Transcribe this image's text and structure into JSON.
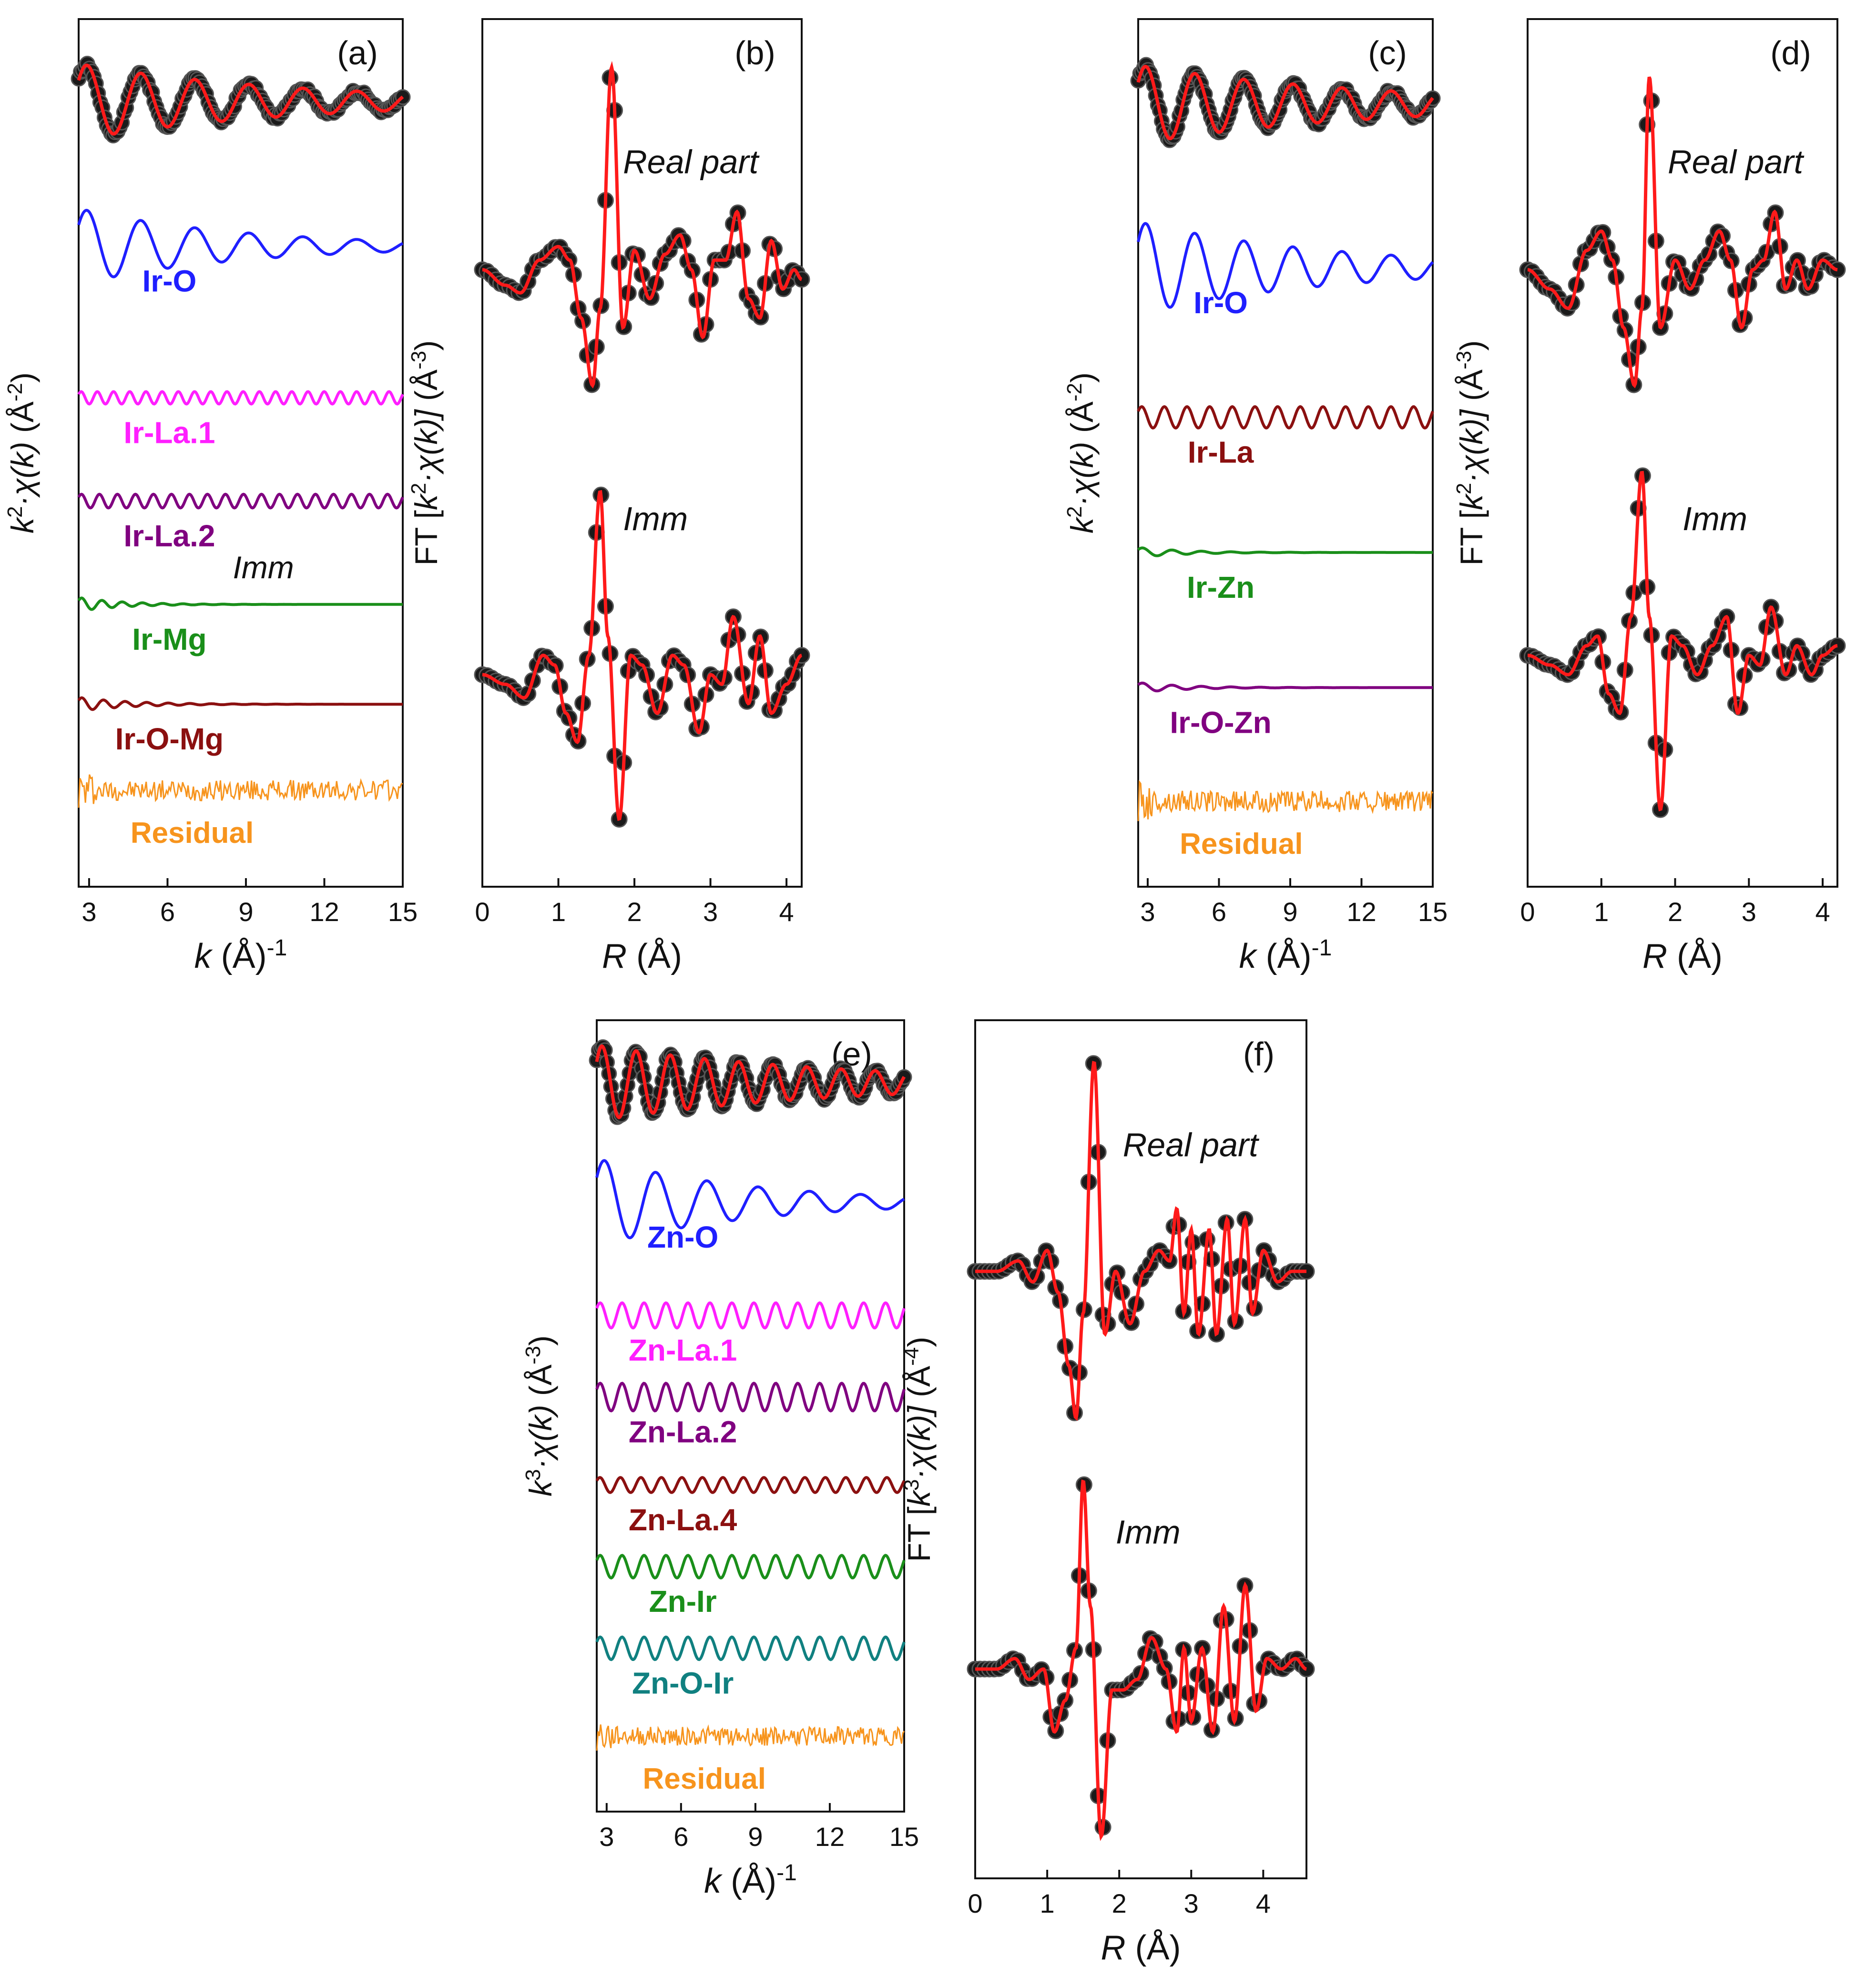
{
  "figure": {
    "caption_marks": [
      "(a)",
      "(b)",
      "(c)",
      "(d)",
      "(e)",
      "(f)"
    ]
  },
  "chart_data": [
    {
      "id": "a",
      "type": "line",
      "panel_label": "(a)",
      "kind": "k",
      "note": "Imm",
      "xlabel": {
        "var": "k",
        "unit": "(Å)",
        "exp": "-1"
      },
      "ylabel": {
        "pre": "k",
        "pre_exp": "2",
        "func": "·χ(k)",
        "unit": "(Å",
        "unit_exp": "-2",
        "close": ")"
      },
      "xlim": [
        2.6,
        15
      ],
      "xticks": [
        3,
        6,
        9,
        12,
        15
      ],
      "series": [
        {
          "name": "Data",
          "role": "data",
          "offset": 0.0,
          "amp": 0.55,
          "cycles": 6.0,
          "decay": 0.12
        },
        {
          "name": "Ir-O",
          "role": "path",
          "color": "#1f1fff",
          "offset": -2.1,
          "amp": 0.55,
          "cycles": 6.0,
          "decay": 0.16
        },
        {
          "name": "Ir-La.1",
          "role": "path",
          "color": "#ff1fff",
          "offset": -4.3,
          "amp": 0.09,
          "cycles": 20.0,
          "decay": 0.0
        },
        {
          "name": "Ir-La.2",
          "role": "path",
          "color": "#800080",
          "offset": -5.8,
          "amp": 0.1,
          "cycles": 18.0,
          "decay": 0.0
        },
        {
          "name": "Ir-Mg",
          "role": "path",
          "color": "#1a8f1a",
          "offset": -7.3,
          "amp": 0.1,
          "cycles": 16.0,
          "decay": 0.6
        },
        {
          "name": "Ir-O-Mg",
          "role": "path",
          "color": "#8b1010",
          "offset": -8.75,
          "amp": 0.1,
          "cycles": 15.0,
          "decay": 0.5
        },
        {
          "name": "Residual",
          "role": "residual",
          "color": "#f7941d",
          "offset": -10.0,
          "amp": 0.15
        }
      ],
      "ylim": [
        -11.4,
        1.2
      ]
    },
    {
      "id": "b",
      "type": "line",
      "panel_label": "(b)",
      "kind": "r",
      "xlabel": {
        "var": "R",
        "unit": "(Å)",
        "exp": ""
      },
      "ylabel": {
        "pre": "FT [k",
        "pre_exp": "2",
        "func": "·χ(k)]",
        "unit": "(Å",
        "unit_exp": "-3",
        "close": ")"
      },
      "xlim": [
        0,
        4.2
      ],
      "xticks": [
        0,
        1,
        2,
        3,
        4
      ],
      "series": [
        {
          "name": "Real part",
          "offset": 0.0,
          "flip": 1,
          "center": 1.6,
          "main_amp": 0.6,
          "points": [
            [
              0,
              0.0
            ],
            [
              0.3,
              -0.08
            ],
            [
              0.5,
              -0.12
            ],
            [
              0.75,
              0.05
            ],
            [
              1.0,
              0.12
            ],
            [
              1.15,
              0.05
            ],
            [
              1.3,
              -0.25
            ],
            [
              1.45,
              -0.6
            ],
            [
              1.55,
              -0.2
            ],
            [
              1.7,
              1.05
            ],
            [
              1.85,
              -0.3
            ],
            [
              2.0,
              0.1
            ],
            [
              2.2,
              -0.15
            ],
            [
              2.4,
              0.08
            ],
            [
              2.6,
              0.18
            ],
            [
              2.75,
              0.0
            ],
            [
              2.9,
              -0.35
            ],
            [
              3.05,
              0.05
            ],
            [
              3.2,
              0.05
            ],
            [
              3.35,
              0.3
            ],
            [
              3.5,
              -0.15
            ],
            [
              3.65,
              -0.25
            ],
            [
              3.8,
              0.15
            ],
            [
              3.95,
              -0.1
            ],
            [
              4.1,
              0.0
            ],
            [
              4.2,
              -0.05
            ]
          ]
        },
        {
          "name": "Imm",
          "offset": -2.1,
          "flip": 1,
          "points": [
            [
              0,
              0.0
            ],
            [
              0.3,
              -0.05
            ],
            [
              0.55,
              -0.12
            ],
            [
              0.8,
              0.1
            ],
            [
              0.95,
              0.05
            ],
            [
              1.1,
              -0.2
            ],
            [
              1.25,
              -0.35
            ],
            [
              1.4,
              0.1
            ],
            [
              1.55,
              0.95
            ],
            [
              1.65,
              0.2
            ],
            [
              1.8,
              -0.75
            ],
            [
              1.95,
              0.1
            ],
            [
              2.1,
              0.05
            ],
            [
              2.3,
              -0.2
            ],
            [
              2.5,
              0.1
            ],
            [
              2.65,
              0.05
            ],
            [
              2.85,
              -0.3
            ],
            [
              3.0,
              0.0
            ],
            [
              3.15,
              -0.05
            ],
            [
              3.3,
              0.3
            ],
            [
              3.5,
              -0.15
            ],
            [
              3.65,
              0.2
            ],
            [
              3.8,
              -0.2
            ],
            [
              4.0,
              -0.05
            ],
            [
              4.2,
              0.1
            ]
          ]
        }
      ],
      "annotations": [
        {
          "text": "Real part",
          "x": 1.85,
          "y": 0.5
        },
        {
          "text": "Imm",
          "x": 1.85,
          "y": -1.35
        }
      ],
      "ylim": [
        -3.2,
        1.3
      ]
    },
    {
      "id": "c",
      "type": "line",
      "panel_label": "(c)",
      "kind": "k",
      "xlabel": {
        "var": "k",
        "unit": "(Å)",
        "exp": "-1"
      },
      "ylabel": {
        "pre": "k",
        "pre_exp": "2",
        "func": "·χ(k)",
        "unit": "(Å",
        "unit_exp": "-2",
        "close": ")"
      },
      "xlim": [
        2.6,
        15
      ],
      "xticks": [
        3,
        6,
        9,
        12,
        15
      ],
      "series": [
        {
          "name": "Data",
          "role": "data",
          "offset": 0.0,
          "amp": 0.55,
          "cycles": 6.0,
          "decay": 0.1
        },
        {
          "name": "Ir-O",
          "role": "path",
          "color": "#1f1fff",
          "offset": -2.3,
          "amp": 0.65,
          "cycles": 6.0,
          "decay": 0.12
        },
        {
          "name": "Ir-La",
          "role": "path",
          "color": "#8b1010",
          "offset": -4.4,
          "amp": 0.15,
          "cycles": 13.0,
          "decay": 0.0
        },
        {
          "name": "Ir-Zn",
          "role": "path",
          "color": "#1a8f1a",
          "offset": -6.3,
          "amp": 0.07,
          "cycles": 10.0,
          "decay": 0.5
        },
        {
          "name": "Ir-O-Zn",
          "role": "path",
          "color": "#800080",
          "offset": -8.2,
          "amp": 0.07,
          "cycles": 10.0,
          "decay": 0.5
        },
        {
          "name": "Residual",
          "role": "residual",
          "color": "#f7941d",
          "offset": -9.8,
          "amp": 0.15
        }
      ],
      "ylim": [
        -11.0,
        1.2
      ]
    },
    {
      "id": "d",
      "type": "line",
      "panel_label": "(d)",
      "kind": "r",
      "xlabel": {
        "var": "R",
        "unit": "(Å)",
        "exp": ""
      },
      "ylabel": {
        "pre": "FT [k",
        "pre_exp": "2",
        "func": "·χ(k)]",
        "unit": "(Å",
        "unit_exp": "-3",
        "close": ")"
      },
      "xlim": [
        0,
        4.2
      ],
      "xticks": [
        0,
        1,
        2,
        3,
        4
      ],
      "series": [
        {
          "name": "Real part",
          "offset": 0.0,
          "points": [
            [
              0,
              0.0
            ],
            [
              0.3,
              -0.1
            ],
            [
              0.55,
              -0.2
            ],
            [
              0.8,
              0.1
            ],
            [
              1.0,
              0.2
            ],
            [
              1.15,
              0.05
            ],
            [
              1.3,
              -0.3
            ],
            [
              1.45,
              -0.6
            ],
            [
              1.55,
              -0.2
            ],
            [
              1.65,
              1.0
            ],
            [
              1.8,
              -0.3
            ],
            [
              2.0,
              0.05
            ],
            [
              2.2,
              -0.1
            ],
            [
              2.4,
              0.05
            ],
            [
              2.6,
              0.2
            ],
            [
              2.75,
              0.05
            ],
            [
              2.9,
              -0.3
            ],
            [
              3.05,
              0.0
            ],
            [
              3.2,
              0.05
            ],
            [
              3.35,
              0.3
            ],
            [
              3.5,
              -0.1
            ],
            [
              3.65,
              0.05
            ],
            [
              3.8,
              -0.1
            ],
            [
              4.0,
              0.05
            ],
            [
              4.2,
              0.0
            ]
          ]
        },
        {
          "name": "Imm",
          "offset": -2.0,
          "points": [
            [
              0,
              0.0
            ],
            [
              0.3,
              -0.05
            ],
            [
              0.55,
              -0.1
            ],
            [
              0.8,
              0.05
            ],
            [
              0.95,
              0.1
            ],
            [
              1.1,
              -0.2
            ],
            [
              1.25,
              -0.3
            ],
            [
              1.4,
              0.2
            ],
            [
              1.55,
              0.95
            ],
            [
              1.65,
              0.2
            ],
            [
              1.8,
              -0.8
            ],
            [
              1.95,
              0.1
            ],
            [
              2.1,
              0.05
            ],
            [
              2.3,
              -0.1
            ],
            [
              2.5,
              0.05
            ],
            [
              2.7,
              0.2
            ],
            [
              2.85,
              -0.3
            ],
            [
              3.0,
              0.0
            ],
            [
              3.15,
              -0.05
            ],
            [
              3.3,
              0.25
            ],
            [
              3.5,
              -0.1
            ],
            [
              3.65,
              0.05
            ],
            [
              3.85,
              -0.1
            ],
            [
              4.0,
              0.0
            ],
            [
              4.2,
              0.05
            ]
          ]
        }
      ],
      "annotations": [
        {
          "text": "Real part",
          "x": 1.9,
          "y": 0.5
        },
        {
          "text": "Imm",
          "x": 2.1,
          "y": -1.35
        }
      ],
      "ylim": [
        -3.2,
        1.3
      ]
    },
    {
      "id": "e",
      "type": "line",
      "panel_label": "(e)",
      "kind": "k",
      "xlabel": {
        "var": "k",
        "unit": "(Å)",
        "exp": "-1"
      },
      "ylabel": {
        "pre": "k",
        "pre_exp": "3",
        "func": "·χ(k)",
        "unit": "(Å",
        "unit_exp": "-3",
        "close": ")"
      },
      "xlim": [
        2.6,
        15
      ],
      "xticks": [
        3,
        6,
        9,
        12,
        15
      ],
      "series": [
        {
          "name": "Data",
          "role": "data",
          "offset": 0.0,
          "amp": 0.6,
          "cycles": 9.0,
          "decay": 0.1
        },
        {
          "name": "Zn-O",
          "role": "path",
          "color": "#1f1fff",
          "offset": -1.9,
          "amp": 0.7,
          "cycles": 6.0,
          "decay": 0.16
        },
        {
          "name": "Zn-La.1",
          "role": "path",
          "color": "#ff1fff",
          "offset": -3.7,
          "amp": 0.2,
          "cycles": 14.0,
          "decay": 0.0
        },
        {
          "name": "Zn-La.2",
          "role": "path",
          "color": "#800080",
          "offset": -5.0,
          "amp": 0.22,
          "cycles": 14.0,
          "decay": 0.0
        },
        {
          "name": "Zn-La.4",
          "role": "path",
          "color": "#8b1010",
          "offset": -6.4,
          "amp": 0.12,
          "cycles": 15.0,
          "decay": 0.0
        },
        {
          "name": "Zn-Ir",
          "role": "path",
          "color": "#1a8f1a",
          "offset": -7.7,
          "amp": 0.18,
          "cycles": 14.0,
          "decay": 0.0
        },
        {
          "name": "Zn-O-Ir",
          "role": "path",
          "color": "#108080",
          "offset": -9.0,
          "amp": 0.18,
          "cycles": 14.0,
          "decay": 0.0
        },
        {
          "name": "Residual",
          "role": "residual",
          "color": "#f7941d",
          "offset": -10.4,
          "amp": 0.15
        }
      ],
      "ylim": [
        -11.6,
        1.0
      ]
    },
    {
      "id": "f",
      "type": "line",
      "panel_label": "(f)",
      "kind": "r",
      "xlabel": {
        "var": "R",
        "unit": "(Å)",
        "exp": ""
      },
      "ylabel": {
        "pre": "FT [k",
        "pre_exp": "3",
        "func": "·χ(k)]",
        "unit": "(Å",
        "unit_exp": "-4",
        "close": ")"
      },
      "xlim": [
        0,
        4.6
      ],
      "xticks": [
        0,
        1,
        2,
        3,
        4
      ],
      "series": [
        {
          "name": "Real part",
          "offset": 0.0,
          "points": [
            [
              0,
              0.0
            ],
            [
              0.3,
              0.0
            ],
            [
              0.6,
              0.05
            ],
            [
              0.8,
              -0.05
            ],
            [
              1.0,
              0.1
            ],
            [
              1.15,
              -0.1
            ],
            [
              1.3,
              -0.45
            ],
            [
              1.4,
              -0.7
            ],
            [
              1.5,
              -0.2
            ],
            [
              1.65,
              1.0
            ],
            [
              1.8,
              -0.3
            ],
            [
              1.95,
              0.0
            ],
            [
              2.15,
              -0.25
            ],
            [
              2.35,
              0.0
            ],
            [
              2.55,
              0.1
            ],
            [
              2.7,
              0.05
            ],
            [
              2.8,
              0.3
            ],
            [
              2.9,
              -0.2
            ],
            [
              3.0,
              0.2
            ],
            [
              3.1,
              -0.3
            ],
            [
              3.25,
              0.2
            ],
            [
              3.35,
              -0.3
            ],
            [
              3.5,
              0.25
            ],
            [
              3.6,
              -0.25
            ],
            [
              3.75,
              0.25
            ],
            [
              3.85,
              -0.2
            ],
            [
              4.0,
              0.1
            ],
            [
              4.2,
              -0.05
            ],
            [
              4.4,
              0.0
            ],
            [
              4.6,
              0.0
            ]
          ]
        },
        {
          "name": "Imm",
          "offset": -1.9,
          "points": [
            [
              0,
              0.0
            ],
            [
              0.3,
              0.0
            ],
            [
              0.55,
              0.05
            ],
            [
              0.75,
              -0.05
            ],
            [
              0.95,
              0.0
            ],
            [
              1.1,
              -0.3
            ],
            [
              1.25,
              -0.15
            ],
            [
              1.4,
              0.1
            ],
            [
              1.5,
              0.9
            ],
            [
              1.6,
              0.3
            ],
            [
              1.75,
              -0.8
            ],
            [
              1.9,
              -0.1
            ],
            [
              2.05,
              -0.1
            ],
            [
              2.25,
              -0.05
            ],
            [
              2.45,
              0.15
            ],
            [
              2.65,
              0.0
            ],
            [
              2.8,
              -0.3
            ],
            [
              2.9,
              0.1
            ],
            [
              3.0,
              -0.25
            ],
            [
              3.15,
              0.1
            ],
            [
              3.3,
              -0.3
            ],
            [
              3.45,
              0.3
            ],
            [
              3.6,
              -0.25
            ],
            [
              3.75,
              0.4
            ],
            [
              3.9,
              -0.2
            ],
            [
              4.05,
              0.05
            ],
            [
              4.25,
              0.0
            ],
            [
              4.45,
              0.05
            ],
            [
              4.6,
              0.0
            ]
          ]
        }
      ],
      "annotations": [
        {
          "text": "Real part",
          "x": 2.05,
          "y": 0.55
        },
        {
          "text": "Imm",
          "x": 1.95,
          "y": -1.3
        }
      ],
      "ylim": [
        -2.9,
        1.2
      ]
    }
  ]
}
